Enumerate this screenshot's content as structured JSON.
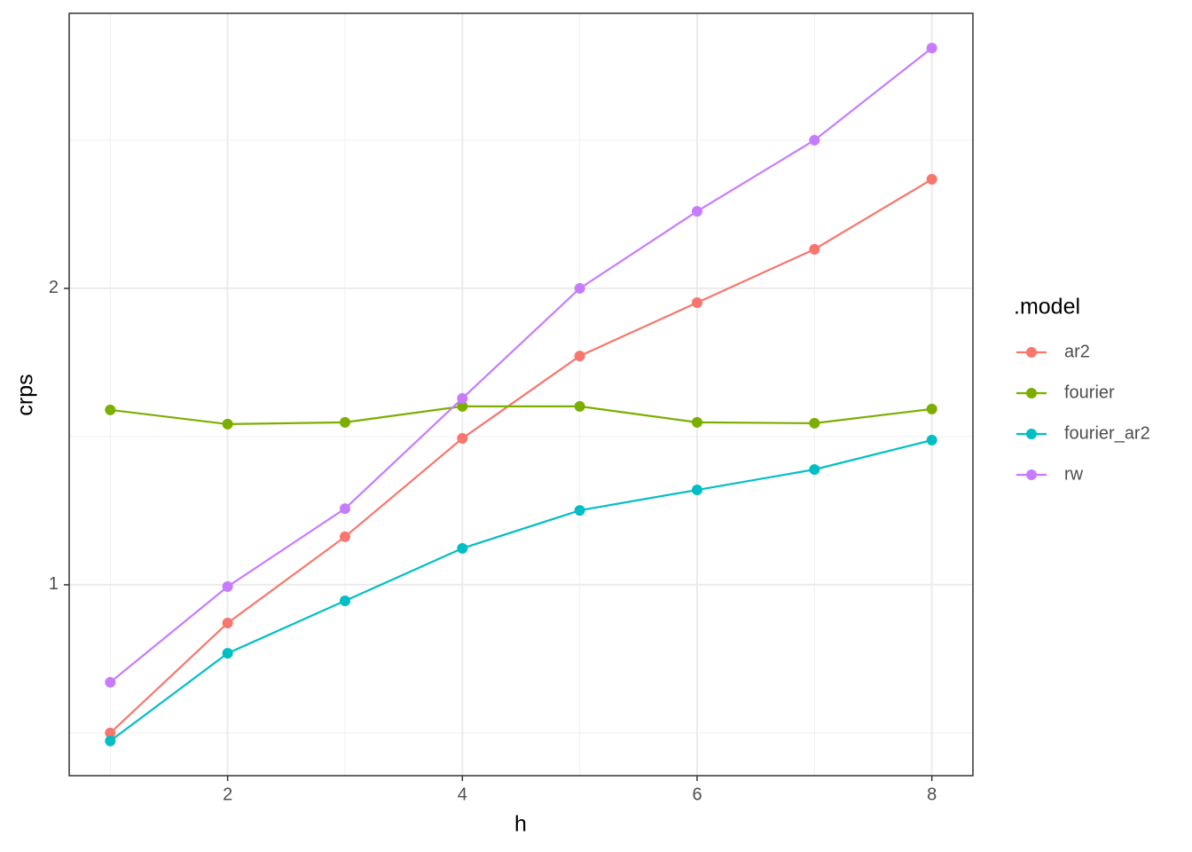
{
  "chart_data": {
    "type": "line",
    "x_label": "h",
    "y_label": "crps",
    "x": [
      1,
      2,
      3,
      4,
      5,
      6,
      7,
      8
    ],
    "series": [
      {
        "name": "ar2",
        "color": "#F8766D",
        "values": [
          0.5,
          0.871,
          1.162,
          1.494,
          1.772,
          1.952,
          2.132,
          2.368
        ]
      },
      {
        "name": "fourier",
        "color": "#7CAE00",
        "values": [
          1.59,
          1.542,
          1.548,
          1.602,
          1.602,
          1.548,
          1.545,
          1.593
        ]
      },
      {
        "name": "fourier_ar2",
        "color": "#00BFC4",
        "values": [
          0.473,
          0.769,
          0.946,
          1.123,
          1.251,
          1.32,
          1.389,
          1.488
        ]
      },
      {
        "name": "rw",
        "color": "#C77CFF",
        "values": [
          0.671,
          0.994,
          1.257,
          1.629,
          2.0,
          2.26,
          2.5,
          2.811
        ]
      }
    ],
    "legend_title": ".model",
    "legend_position": "right",
    "xlim": [
      0.65,
      8.35
    ],
    "xticks": [
      2,
      4,
      6,
      8
    ],
    "x_minor_ticks": [
      1,
      3,
      5,
      7
    ],
    "ylim": [
      0.356,
      2.928
    ],
    "yticks": [
      1,
      2
    ],
    "y_minor_ticks": [
      0.5,
      1.5,
      2.5
    ],
    "grid": true
  }
}
